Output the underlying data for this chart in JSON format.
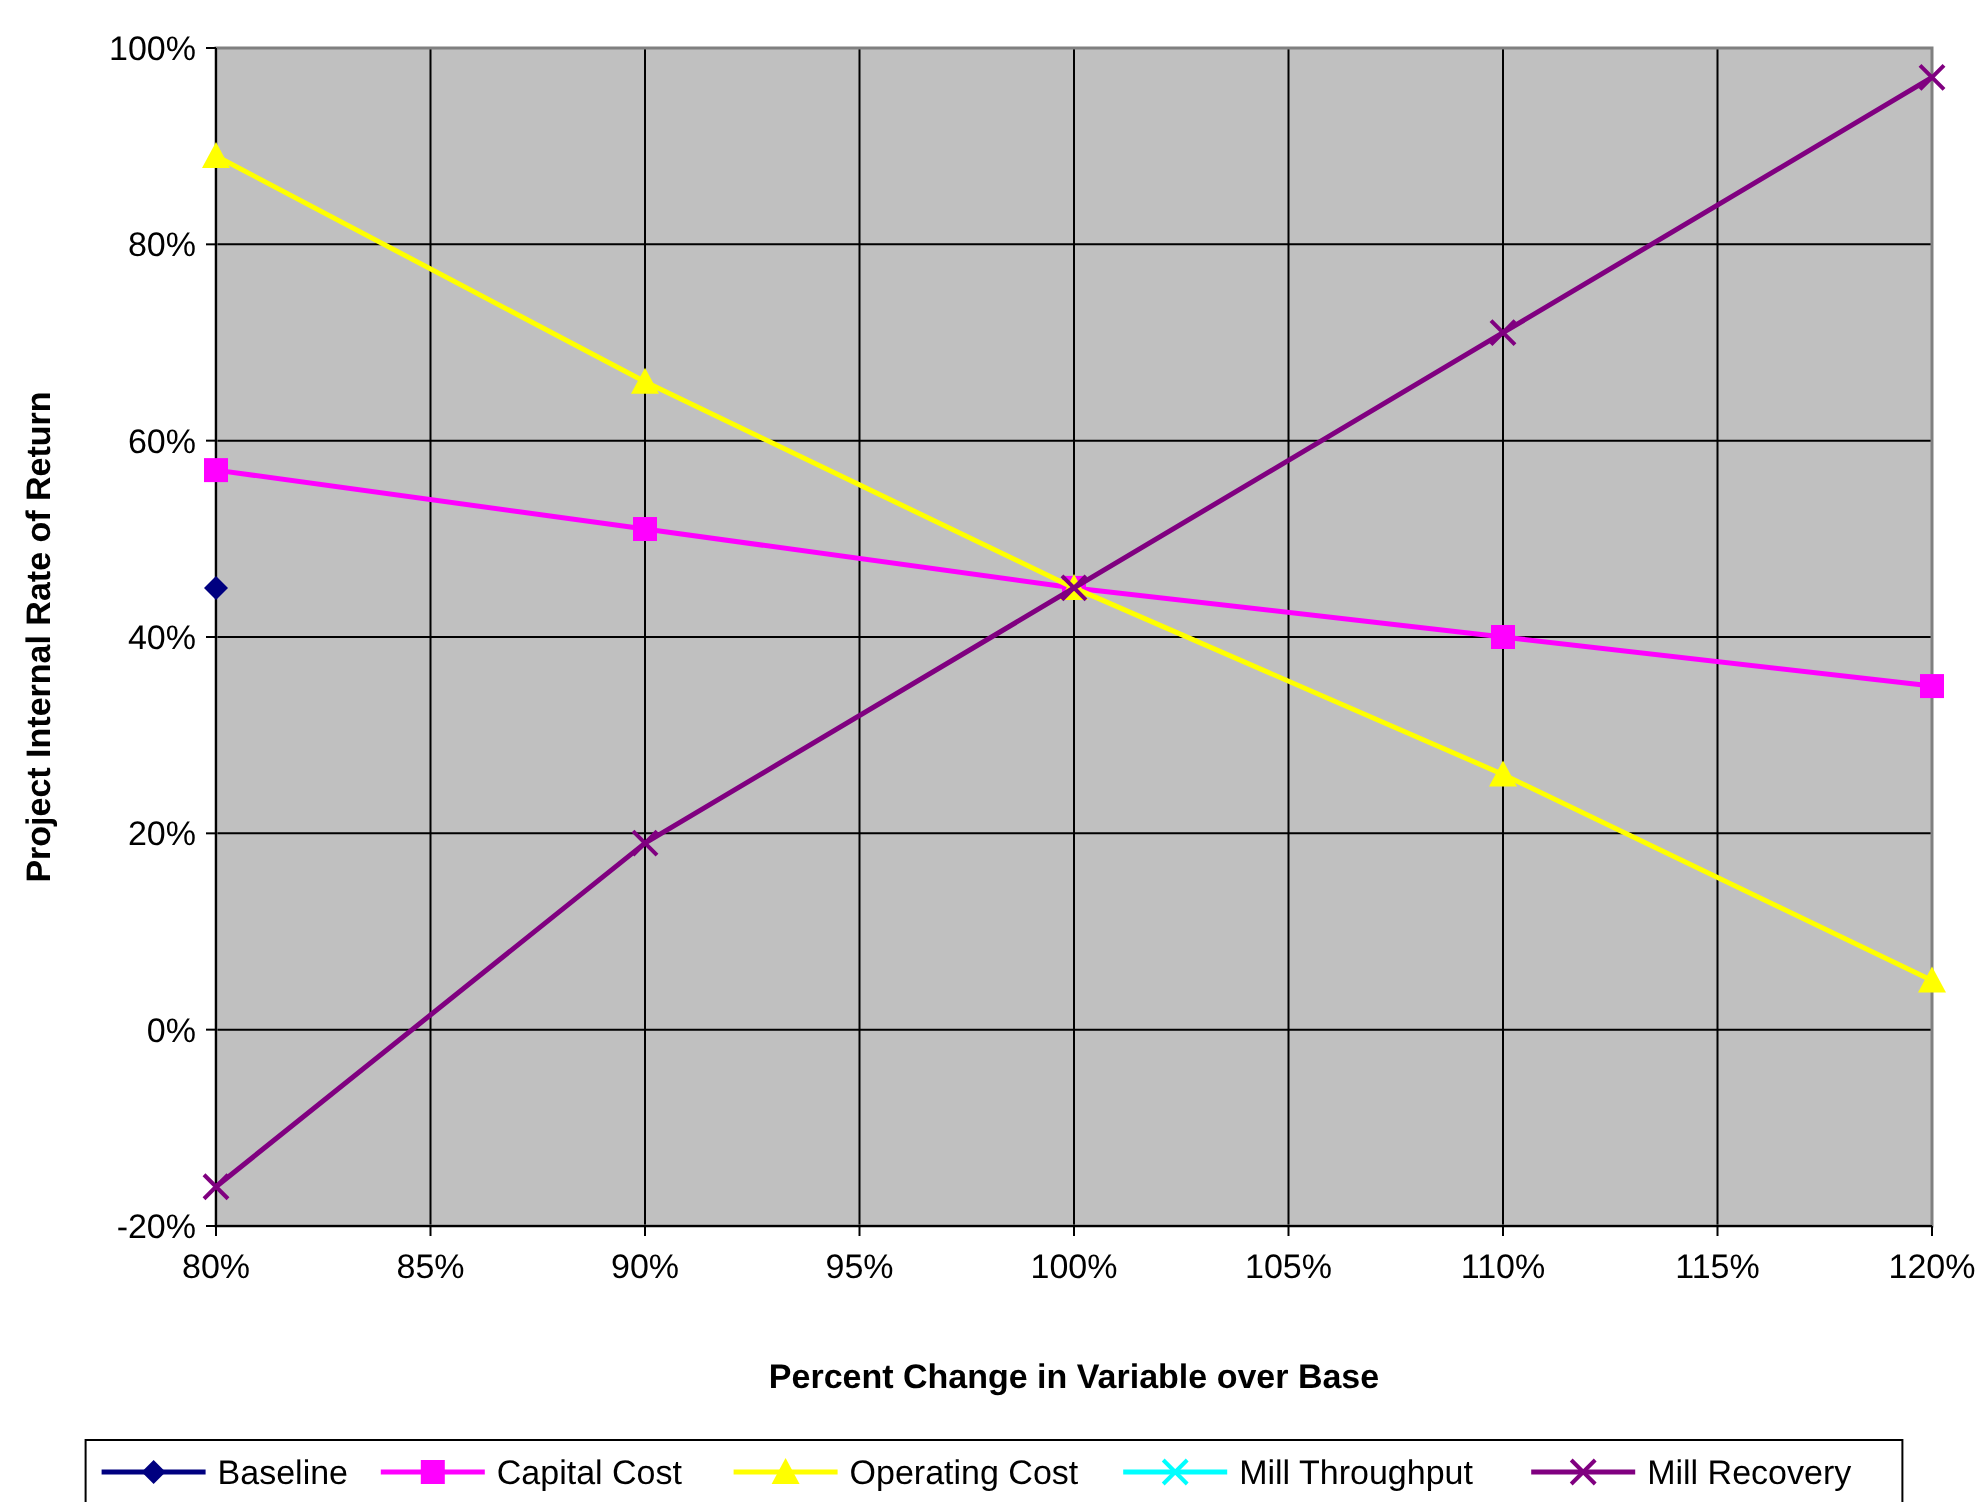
{
  "chart_data": {
    "type": "line",
    "xlabel": "Percent Change in Variable over Base",
    "ylabel": "Project Internal Rate of Return",
    "x": [
      80,
      90,
      100,
      110,
      120
    ],
    "xlim": [
      80,
      120
    ],
    "xticks": [
      {
        "value": 80,
        "label": "80%"
      },
      {
        "value": 85,
        "label": "85%"
      },
      {
        "value": 90,
        "label": "90%"
      },
      {
        "value": 95,
        "label": "95%"
      },
      {
        "value": 100,
        "label": "100%"
      },
      {
        "value": 105,
        "label": "105%"
      },
      {
        "value": 110,
        "label": "110%"
      },
      {
        "value": 115,
        "label": "115%"
      },
      {
        "value": 120,
        "label": "120%"
      }
    ],
    "ylim": [
      -20,
      100
    ],
    "yticks": [
      {
        "value": -20,
        "label": "-20%"
      },
      {
        "value": 0,
        "label": "0%"
      },
      {
        "value": 20,
        "label": "20%"
      },
      {
        "value": 40,
        "label": "40%"
      },
      {
        "value": 60,
        "label": "60%"
      },
      {
        "value": 80,
        "label": "80%"
      },
      {
        "value": 100,
        "label": "100%"
      }
    ],
    "grid": true,
    "legend": "bottom",
    "series": [
      {
        "name": "Baseline",
        "color": "#000080",
        "marker": "diamond",
        "values": [
          45,
          null,
          null,
          null,
          null
        ]
      },
      {
        "name": "Capital Cost",
        "color": "#ff00ff",
        "marker": "square",
        "values": [
          57,
          51,
          45,
          40,
          35
        ]
      },
      {
        "name": "Operating Cost",
        "color": "#ffff00",
        "marker": "triangle",
        "values": [
          89,
          66,
          45,
          26,
          5
        ]
      },
      {
        "name": "Mill Throughput",
        "color": "#00ffff",
        "marker": "cross",
        "values": [
          null,
          null,
          null,
          null,
          null
        ]
      },
      {
        "name": "Mill Recovery",
        "color": "#800080",
        "marker": "cross",
        "values": [
          -16,
          19,
          45,
          71,
          97
        ]
      }
    ]
  }
}
